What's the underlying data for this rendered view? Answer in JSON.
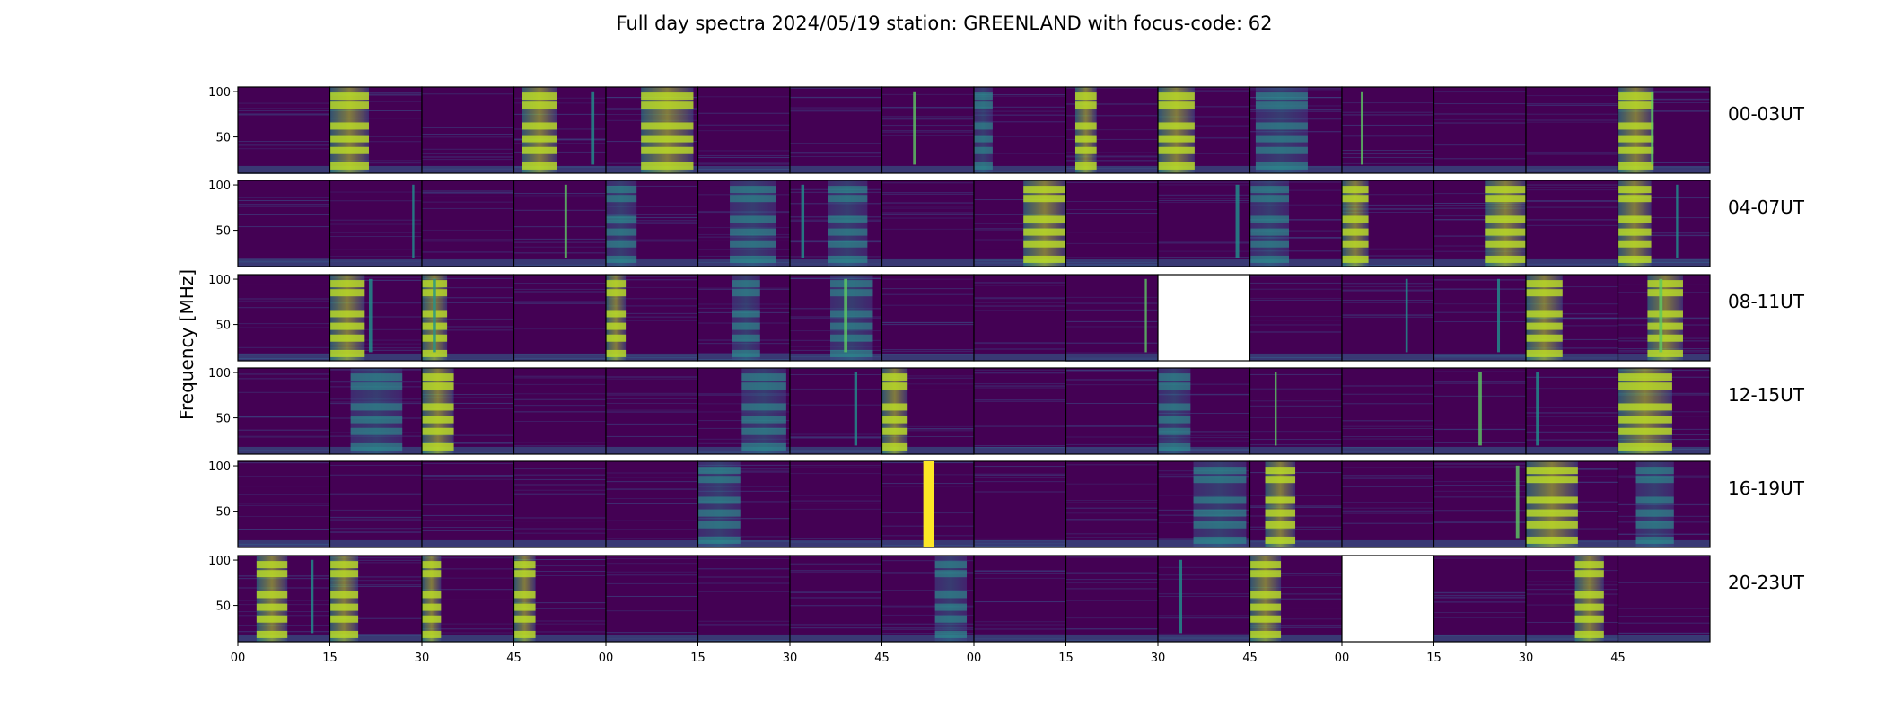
{
  "chart_data": {
    "type": "heatmap",
    "title": "Full day spectra 2024/05/19 station: GREENLAND with focus-code: 62",
    "ylabel": "Frequency [MHz]",
    "xlabel": "",
    "ylim": [
      10,
      105
    ],
    "y_ticks": [
      "100",
      "50"
    ],
    "x_ticks": [
      "00",
      "15",
      "30",
      "45",
      "00",
      "15",
      "30",
      "45",
      "00",
      "15",
      "30",
      "45",
      "00",
      "15",
      "30",
      "45"
    ],
    "colormap": "viridis",
    "colors": {
      "low": "#440154",
      "mid": "#2a788e",
      "high": "#fde725",
      "frame": "#000000"
    },
    "grid": false,
    "rows": [
      {
        "label": "00-03UT",
        "missing_panels": []
      },
      {
        "label": "04-07UT",
        "missing_panels": []
      },
      {
        "label": "08-11UT",
        "missing_panels": [
          10
        ]
      },
      {
        "label": "12-15UT",
        "missing_panels": []
      },
      {
        "label": "16-19UT",
        "missing_panels": []
      },
      {
        "label": "20-23UT",
        "missing_panels": [
          12
        ]
      }
    ],
    "panels_per_row": 16,
    "panel_minutes": 15
  }
}
